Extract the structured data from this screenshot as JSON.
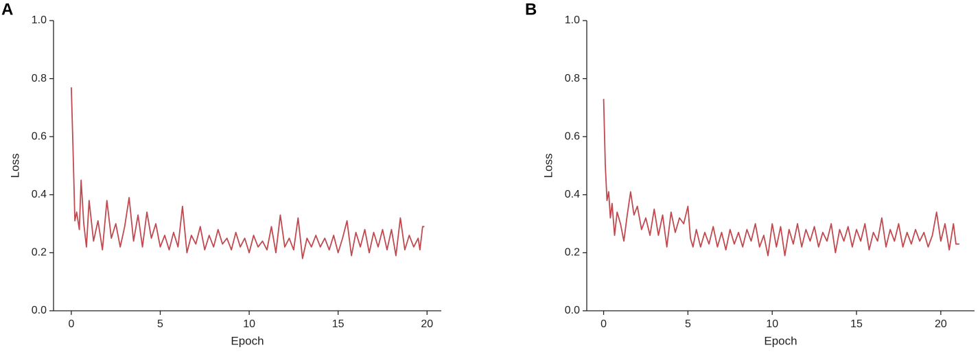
{
  "chart_data": [
    {
      "type": "line",
      "label": "A",
      "xlabel": "Epoch",
      "ylabel": "Loss",
      "xlim": [
        -1,
        20.8
      ],
      "ylim": [
        0,
        1
      ],
      "xticks": [
        0,
        5,
        10,
        15,
        20
      ],
      "yticks": [
        {
          "value": 0,
          "label": "0.0"
        },
        0.2,
        0.4,
        0.6,
        0.8,
        {
          "value": 1,
          "label": "1.0"
        }
      ],
      "x": [
        0,
        0.1,
        0.2,
        0.3,
        0.45,
        0.55,
        0.7,
        0.85,
        1,
        1.25,
        1.5,
        1.75,
        2,
        2.25,
        2.5,
        2.75,
        3,
        3.25,
        3.5,
        3.75,
        4,
        4.25,
        4.5,
        4.75,
        5,
        5.25,
        5.5,
        5.75,
        6,
        6.25,
        6.5,
        6.75,
        7,
        7.25,
        7.5,
        7.75,
        8,
        8.25,
        8.5,
        8.75,
        9,
        9.25,
        9.5,
        9.75,
        10,
        10.25,
        10.5,
        10.75,
        11,
        11.25,
        11.5,
        11.75,
        12,
        12.25,
        12.5,
        12.75,
        13,
        13.25,
        13.5,
        13.75,
        14,
        14.25,
        14.5,
        14.75,
        15,
        15.25,
        15.5,
        15.75,
        16,
        16.25,
        16.5,
        16.75,
        17,
        17.25,
        17.5,
        17.75,
        18,
        18.25,
        18.5,
        18.75,
        19,
        19.25,
        19.5,
        19.6,
        19.75,
        19.85
      ],
      "series": [
        {
          "color": "#c0494f",
          "values": [
            0.77,
            0.55,
            0.31,
            0.34,
            0.28,
            0.45,
            0.3,
            0.22,
            0.38,
            0.24,
            0.31,
            0.21,
            0.38,
            0.25,
            0.3,
            0.22,
            0.29,
            0.39,
            0.24,
            0.33,
            0.22,
            0.34,
            0.25,
            0.3,
            0.22,
            0.26,
            0.21,
            0.27,
            0.22,
            0.36,
            0.2,
            0.26,
            0.23,
            0.29,
            0.21,
            0.26,
            0.22,
            0.28,
            0.23,
            0.25,
            0.21,
            0.27,
            0.22,
            0.25,
            0.2,
            0.26,
            0.22,
            0.24,
            0.21,
            0.29,
            0.2,
            0.33,
            0.22,
            0.25,
            0.21,
            0.32,
            0.18,
            0.25,
            0.22,
            0.26,
            0.22,
            0.25,
            0.21,
            0.26,
            0.2,
            0.25,
            0.31,
            0.19,
            0.27,
            0.22,
            0.28,
            0.2,
            0.27,
            0.22,
            0.28,
            0.21,
            0.28,
            0.19,
            0.32,
            0.21,
            0.26,
            0.22,
            0.25,
            0.21,
            0.29,
            0.29
          ]
        }
      ]
    },
    {
      "type": "line",
      "label": "B",
      "xlabel": "Epoch",
      "ylabel": "Loss",
      "xlim": [
        -1,
        22
      ],
      "ylim": [
        0,
        1
      ],
      "xticks": [
        0,
        5,
        10,
        15,
        20
      ],
      "yticks": [
        {
          "value": 0,
          "label": "0.0"
        },
        0.2,
        0.4,
        0.6,
        0.8,
        {
          "value": 1,
          "label": "1.0"
        }
      ],
      "x": [
        0,
        0.1,
        0.2,
        0.3,
        0.4,
        0.5,
        0.65,
        0.8,
        1,
        1.2,
        1.4,
        1.6,
        1.8,
        2,
        2.25,
        2.5,
        2.75,
        3,
        3.25,
        3.5,
        3.75,
        4,
        4.25,
        4.5,
        4.75,
        5,
        5.15,
        5.3,
        5.5,
        5.75,
        6,
        6.25,
        6.5,
        6.75,
        7,
        7.25,
        7.5,
        7.75,
        8,
        8.25,
        8.5,
        8.75,
        9,
        9.25,
        9.5,
        9.75,
        10,
        10.25,
        10.5,
        10.75,
        11,
        11.25,
        11.5,
        11.75,
        12,
        12.25,
        12.5,
        12.75,
        13,
        13.25,
        13.5,
        13.75,
        14,
        14.25,
        14.5,
        14.75,
        15,
        15.25,
        15.5,
        15.75,
        16,
        16.25,
        16.5,
        16.75,
        17,
        17.25,
        17.5,
        17.75,
        18,
        18.25,
        18.5,
        18.75,
        19,
        19.25,
        19.5,
        19.75,
        20,
        20.25,
        20.5,
        20.75,
        20.9,
        21.1
      ],
      "series": [
        {
          "color": "#c0494f",
          "values": [
            0.73,
            0.5,
            0.38,
            0.41,
            0.32,
            0.37,
            0.26,
            0.34,
            0.3,
            0.24,
            0.33,
            0.41,
            0.33,
            0.36,
            0.28,
            0.32,
            0.26,
            0.35,
            0.26,
            0.33,
            0.22,
            0.34,
            0.27,
            0.32,
            0.3,
            0.36,
            0.25,
            0.22,
            0.28,
            0.22,
            0.27,
            0.23,
            0.29,
            0.22,
            0.27,
            0.21,
            0.28,
            0.23,
            0.27,
            0.22,
            0.28,
            0.24,
            0.3,
            0.22,
            0.26,
            0.19,
            0.3,
            0.22,
            0.29,
            0.19,
            0.28,
            0.23,
            0.3,
            0.22,
            0.28,
            0.24,
            0.29,
            0.22,
            0.27,
            0.24,
            0.3,
            0.2,
            0.28,
            0.24,
            0.29,
            0.22,
            0.28,
            0.24,
            0.3,
            0.21,
            0.27,
            0.24,
            0.32,
            0.22,
            0.28,
            0.24,
            0.3,
            0.22,
            0.27,
            0.23,
            0.28,
            0.24,
            0.27,
            0.22,
            0.26,
            0.34,
            0.24,
            0.3,
            0.21,
            0.3,
            0.23,
            0.23
          ]
        }
      ]
    }
  ]
}
